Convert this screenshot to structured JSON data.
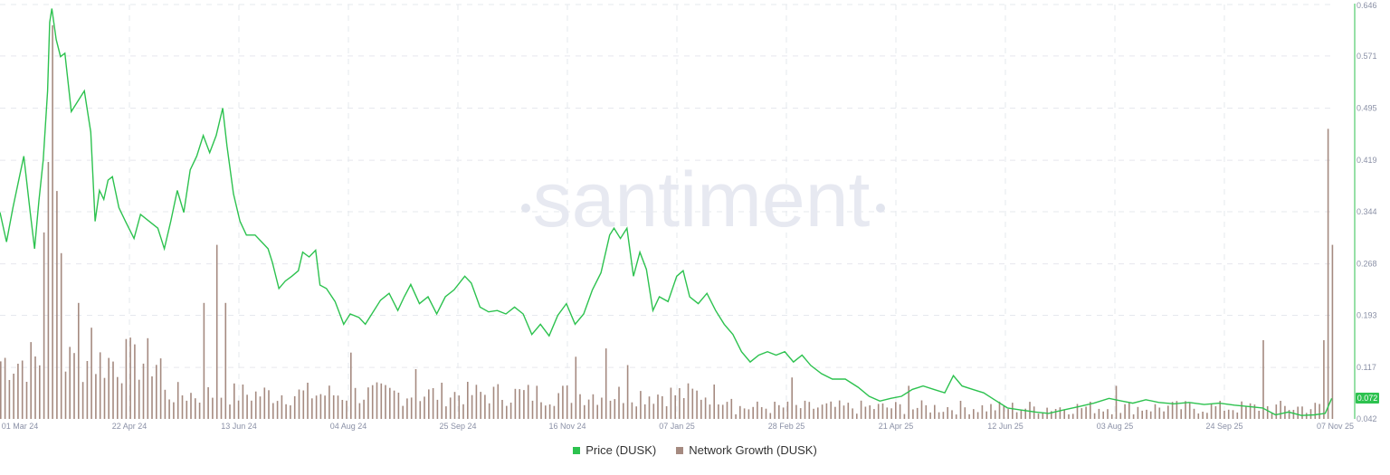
{
  "watermark": "santiment",
  "colors": {
    "price": "#2dc24f",
    "network": "#a58a80",
    "grid": "#e6e8ee",
    "axis_text": "#8a90a6",
    "badge_bg": "#2dc24f",
    "badge_text": "#ffffff"
  },
  "legend": [
    {
      "label": "Price (DUSK)",
      "color": "#2dc24f",
      "icon": "square-swatch"
    },
    {
      "label": "Network Growth (DUSK)",
      "color": "#a58a80",
      "icon": "square-swatch"
    }
  ],
  "price_badge": "0.072",
  "chart_data": {
    "type": "line",
    "title": "",
    "x_ticks": [
      "01 Mar 24",
      "22 Apr 24",
      "13 Jun 24",
      "04 Aug 24",
      "25 Sep 24",
      "16 Nov 24",
      "07 Jan 25",
      "28 Feb 25",
      "21 Apr 25",
      "12 Jun 25",
      "03 Aug 25",
      "24 Sep 25",
      "07 Nov 25"
    ],
    "x_range": [
      "2024-02-29",
      "2025-11-07"
    ],
    "y_ticks": [
      "0.646",
      "0.571",
      "0.495",
      "0.419",
      "0.344",
      "0.268",
      "0.193",
      "0.117",
      "0.042"
    ],
    "ylim": [
      0.042,
      0.646
    ],
    "grid": true,
    "legend_position": "bottom",
    "series": [
      {
        "name": "Price (DUSK)",
        "type": "line",
        "axis": "right",
        "points": [
          [
            "2024-02-29",
            0.343
          ],
          [
            "2024-03-03",
            0.3
          ],
          [
            "2024-03-06",
            0.35
          ],
          [
            "2024-03-09",
            0.395
          ],
          [
            "2024-03-11",
            0.425
          ],
          [
            "2024-03-14",
            0.343
          ],
          [
            "2024-03-16",
            0.29
          ],
          [
            "2024-03-18",
            0.36
          ],
          [
            "2024-03-20",
            0.42
          ],
          [
            "2024-03-22",
            0.52
          ],
          [
            "2024-03-23",
            0.62
          ],
          [
            "2024-03-24",
            0.64
          ],
          [
            "2024-03-26",
            0.595
          ],
          [
            "2024-03-28",
            0.57
          ],
          [
            "2024-03-30",
            0.575
          ],
          [
            "2024-04-02",
            0.49
          ],
          [
            "2024-04-05",
            0.505
          ],
          [
            "2024-04-08",
            0.52
          ],
          [
            "2024-04-11",
            0.46
          ],
          [
            "2024-04-13",
            0.33
          ],
          [
            "2024-04-15",
            0.375
          ],
          [
            "2024-04-17",
            0.362
          ],
          [
            "2024-04-19",
            0.39
          ],
          [
            "2024-04-21",
            0.395
          ],
          [
            "2024-04-24",
            0.35
          ],
          [
            "2024-04-27",
            0.33
          ],
          [
            "2024-05-01",
            0.305
          ],
          [
            "2024-05-04",
            0.34
          ],
          [
            "2024-05-08",
            0.33
          ],
          [
            "2024-05-12",
            0.32
          ],
          [
            "2024-05-15",
            0.29
          ],
          [
            "2024-05-18",
            0.33
          ],
          [
            "2024-05-21",
            0.375
          ],
          [
            "2024-05-24",
            0.343
          ],
          [
            "2024-05-27",
            0.405
          ],
          [
            "2024-05-30",
            0.425
          ],
          [
            "2024-06-02",
            0.455
          ],
          [
            "2024-06-05",
            0.43
          ],
          [
            "2024-06-08",
            0.455
          ],
          [
            "2024-06-11",
            0.495
          ],
          [
            "2024-06-13",
            0.44
          ],
          [
            "2024-06-16",
            0.37
          ],
          [
            "2024-06-19",
            0.33
          ],
          [
            "2024-06-22",
            0.31
          ],
          [
            "2024-06-26",
            0.31
          ],
          [
            "2024-06-29",
            0.3
          ],
          [
            "2024-07-02",
            0.29
          ],
          [
            "2024-07-04",
            0.27
          ],
          [
            "2024-07-07",
            0.232
          ],
          [
            "2024-07-10",
            0.243
          ],
          [
            "2024-07-13",
            0.25
          ],
          [
            "2024-07-16",
            0.258
          ],
          [
            "2024-07-18",
            0.285
          ],
          [
            "2024-07-21",
            0.278
          ],
          [
            "2024-07-24",
            0.288
          ],
          [
            "2024-07-26",
            0.237
          ],
          [
            "2024-07-29",
            0.232
          ],
          [
            "2024-08-02",
            0.213
          ],
          [
            "2024-08-06",
            0.18
          ],
          [
            "2024-08-09",
            0.195
          ],
          [
            "2024-08-13",
            0.19
          ],
          [
            "2024-08-16",
            0.18
          ],
          [
            "2024-08-19",
            0.195
          ],
          [
            "2024-08-23",
            0.215
          ],
          [
            "2024-08-27",
            0.225
          ],
          [
            "2024-08-31",
            0.2
          ],
          [
            "2024-09-03",
            0.22
          ],
          [
            "2024-09-06",
            0.238
          ],
          [
            "2024-09-10",
            0.21
          ],
          [
            "2024-09-14",
            0.22
          ],
          [
            "2024-09-18",
            0.195
          ],
          [
            "2024-09-22",
            0.22
          ],
          [
            "2024-09-26",
            0.23
          ],
          [
            "2024-10-01",
            0.25
          ],
          [
            "2024-10-04",
            0.24
          ],
          [
            "2024-10-08",
            0.205
          ],
          [
            "2024-10-12",
            0.198
          ],
          [
            "2024-10-16",
            0.2
          ],
          [
            "2024-10-20",
            0.195
          ],
          [
            "2024-10-24",
            0.205
          ],
          [
            "2024-10-28",
            0.195
          ],
          [
            "2024-11-01",
            0.165
          ],
          [
            "2024-11-05",
            0.18
          ],
          [
            "2024-11-09",
            0.163
          ],
          [
            "2024-11-13",
            0.193
          ],
          [
            "2024-11-17",
            0.21
          ],
          [
            "2024-11-21",
            0.18
          ],
          [
            "2024-11-25",
            0.195
          ],
          [
            "2024-11-29",
            0.23
          ],
          [
            "2024-12-03",
            0.255
          ],
          [
            "2024-12-07",
            0.31
          ],
          [
            "2024-12-09",
            0.32
          ],
          [
            "2024-12-12",
            0.305
          ],
          [
            "2024-12-15",
            0.32
          ],
          [
            "2024-12-18",
            0.25
          ],
          [
            "2024-12-21",
            0.285
          ],
          [
            "2024-12-24",
            0.26
          ],
          [
            "2024-12-27",
            0.2
          ],
          [
            "2024-12-30",
            0.22
          ],
          [
            "2025-01-03",
            0.213
          ],
          [
            "2025-01-07",
            0.25
          ],
          [
            "2025-01-10",
            0.258
          ],
          [
            "2025-01-13",
            0.22
          ],
          [
            "2025-01-17",
            0.21
          ],
          [
            "2025-01-21",
            0.225
          ],
          [
            "2025-01-25",
            0.2
          ],
          [
            "2025-01-29",
            0.18
          ],
          [
            "2025-02-02",
            0.165
          ],
          [
            "2025-02-06",
            0.14
          ],
          [
            "2025-02-10",
            0.125
          ],
          [
            "2025-02-14",
            0.135
          ],
          [
            "2025-02-18",
            0.14
          ],
          [
            "2025-02-22",
            0.135
          ],
          [
            "2025-02-26",
            0.14
          ],
          [
            "2025-03-02",
            0.125
          ],
          [
            "2025-03-06",
            0.135
          ],
          [
            "2025-03-10",
            0.12
          ],
          [
            "2025-03-15",
            0.108
          ],
          [
            "2025-03-20",
            0.1
          ],
          [
            "2025-03-26",
            0.1
          ],
          [
            "2025-04-01",
            0.088
          ],
          [
            "2025-04-06",
            0.075
          ],
          [
            "2025-04-11",
            0.068
          ],
          [
            "2025-04-16",
            0.072
          ],
          [
            "2025-04-21",
            0.075
          ],
          [
            "2025-04-26",
            0.085
          ],
          [
            "2025-05-01",
            0.09
          ],
          [
            "2025-05-06",
            0.085
          ],
          [
            "2025-05-11",
            0.08
          ],
          [
            "2025-05-15",
            0.105
          ],
          [
            "2025-05-19",
            0.09
          ],
          [
            "2025-05-24",
            0.085
          ],
          [
            "2025-05-29",
            0.08
          ],
          [
            "2025-06-03",
            0.07
          ],
          [
            "2025-06-09",
            0.058
          ],
          [
            "2025-06-15",
            0.055
          ],
          [
            "2025-06-22",
            0.052
          ],
          [
            "2025-06-28",
            0.05
          ],
          [
            "2025-07-05",
            0.055
          ],
          [
            "2025-07-12",
            0.06
          ],
          [
            "2025-07-19",
            0.065
          ],
          [
            "2025-07-26",
            0.072
          ],
          [
            "2025-08-01",
            0.068
          ],
          [
            "2025-08-06",
            0.065
          ],
          [
            "2025-08-12",
            0.07
          ],
          [
            "2025-08-18",
            0.066
          ],
          [
            "2025-08-25",
            0.064
          ],
          [
            "2025-09-01",
            0.066
          ],
          [
            "2025-09-08",
            0.063
          ],
          [
            "2025-09-15",
            0.065
          ],
          [
            "2025-09-22",
            0.062
          ],
          [
            "2025-09-29",
            0.06
          ],
          [
            "2025-10-05",
            0.058
          ],
          [
            "2025-10-11",
            0.048
          ],
          [
            "2025-10-17",
            0.052
          ],
          [
            "2025-10-23",
            0.047
          ],
          [
            "2025-10-29",
            0.048
          ],
          [
            "2025-11-03",
            0.05
          ],
          [
            "2025-11-06",
            0.072
          ]
        ]
      },
      {
        "name": "Network Growth (DUSK)",
        "type": "bar",
        "axis": "hidden",
        "baseline": 0.21,
        "peaks": [
          [
            "2024-03-20",
            0.45
          ],
          [
            "2024-03-23",
            0.62
          ],
          [
            "2024-03-24",
            0.95
          ],
          [
            "2024-03-26",
            0.55
          ],
          [
            "2024-03-28",
            0.4
          ],
          [
            "2024-04-05",
            0.28
          ],
          [
            "2024-04-12",
            0.22
          ],
          [
            "2024-05-01",
            0.18
          ],
          [
            "2024-06-02",
            0.28
          ],
          [
            "2024-06-08",
            0.42
          ],
          [
            "2024-06-12",
            0.28
          ],
          [
            "2024-08-10",
            0.16
          ],
          [
            "2024-09-08",
            0.12
          ],
          [
            "2024-11-21",
            0.15
          ],
          [
            "2024-12-06",
            0.17
          ],
          [
            "2024-12-15",
            0.13
          ],
          [
            "2025-03-01",
            0.1
          ],
          [
            "2025-04-25",
            0.08
          ],
          [
            "2025-07-30",
            0.08
          ],
          [
            "2025-10-05",
            0.19
          ],
          [
            "2025-11-02",
            0.19
          ],
          [
            "2025-11-05",
            0.7
          ],
          [
            "2025-11-06",
            0.42
          ]
        ]
      }
    ]
  }
}
